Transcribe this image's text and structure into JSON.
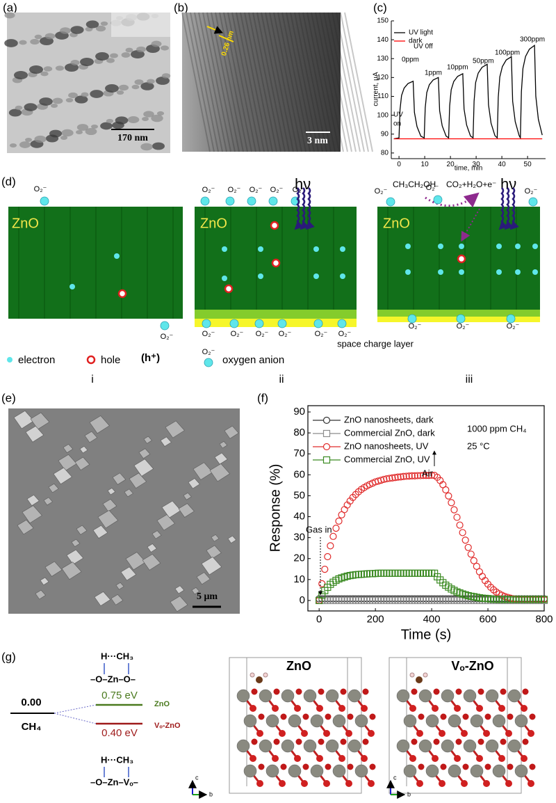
{
  "panel_labels": [
    "(a)",
    "(b)",
    "(c)",
    "(d)",
    "(e)",
    "(f)",
    "(g)"
  ],
  "panel_a": {
    "scale_bar": "170 nm"
  },
  "panel_b": {
    "scale_bar": "3 nm",
    "lattice_spacing": "0.26 nm"
  },
  "chart_data": [
    {
      "type": "line",
      "xlabel": "time, min",
      "ylabel": "current, μA",
      "frame": false,
      "xlim": [
        -3,
        57
      ],
      "ylim": [
        77,
        150
      ],
      "xticks": [
        0,
        10,
        20,
        30,
        40,
        50
      ],
      "yticks": [
        80,
        90,
        100,
        110,
        120,
        130,
        140,
        150
      ],
      "legend": "upper left",
      "series": [
        {
          "name": "UV light",
          "color": "#000000",
          "x": [
            -2,
            0,
            0.4,
            1,
            2,
            3.5,
            5.5,
            6,
            7,
            8.5,
            9.8,
            10.2,
            10.8,
            11.8,
            13.3,
            15.3,
            15.8,
            16.8,
            18.3,
            19.3,
            19.7,
            20.3,
            21.3,
            22.8,
            24.8,
            25.3,
            26.3,
            27.8,
            28.8,
            29.2,
            29.8,
            30.8,
            32.3,
            34.3,
            34.8,
            35.8,
            37.3,
            38.2,
            38.6,
            39.2,
            40.2,
            41.7,
            43.7,
            44.2,
            45.2,
            46.7,
            47.2,
            47.6,
            48.2,
            49.2,
            50.7,
            52.7,
            53.2,
            54.2,
            55.7
          ],
          "values": [
            87.5,
            88,
            103,
            110.5,
            114.4,
            116.8,
            118,
            101.5,
            94,
            88.9,
            88,
            104,
            112,
            116.2,
            118.7,
            120,
            102.4,
            94.4,
            89,
            88,
            105,
            113.5,
            117.9,
            120.6,
            122,
            103.3,
            94.8,
            89,
            88,
            107.5,
            117.3,
            122.3,
            125.4,
            127,
            105.6,
            95.8,
            89.2,
            88,
            109.5,
            120.3,
            125.8,
            129.3,
            131,
            107.4,
            96.6,
            89.3,
            88,
            112.5,
            124.8,
            131.1,
            135,
            137,
            110.1,
            97.8,
            89.5
          ]
        },
        {
          "name": "dark",
          "color": "#ff0000",
          "x": [
            -2,
            55.7
          ],
          "values": [
            87.5,
            87.5
          ]
        }
      ],
      "annotations": [
        "UV 0ff",
        "0ppm",
        "1ppm",
        "10ppm",
        "50ppm",
        "100ppm",
        "300ppm",
        "UV",
        "on"
      ]
    },
    {
      "type": "scatter",
      "xlabel": "Time (s)",
      "ylabel": "Response (%)",
      "frame": true,
      "xlim": [
        -40,
        800
      ],
      "ylim": [
        -5,
        93
      ],
      "xticks": [
        0,
        200,
        400,
        600,
        800
      ],
      "yticks": [
        0,
        10,
        20,
        30,
        40,
        50,
        60,
        70,
        80,
        90
      ],
      "legend": "upper left",
      "x": [
        0,
        10,
        20,
        30,
        40,
        50,
        60,
        70,
        80,
        90,
        100,
        110,
        120,
        130,
        140,
        150,
        160,
        170,
        180,
        190,
        200,
        210,
        220,
        230,
        240,
        250,
        260,
        270,
        280,
        290,
        300,
        310,
        320,
        330,
        340,
        350,
        360,
        370,
        380,
        390,
        400,
        410,
        420,
        430,
        440,
        450,
        460,
        470,
        480,
        490,
        500,
        510,
        520,
        530,
        540,
        550,
        560,
        570,
        580,
        590,
        600,
        610,
        620,
        630,
        640,
        650,
        660,
        670,
        680,
        690,
        700,
        710,
        720,
        730,
        740,
        750,
        760,
        770,
        780,
        790,
        800
      ],
      "series": [
        {
          "name": "ZnO nanosheets, dark",
          "color": "#333333",
          "marker": "circle",
          "values": [
            0.8,
            0.8,
            0.8,
            0.8,
            0.8,
            0.8,
            0.8,
            0.8,
            0.8,
            0.8,
            0.8,
            0.8,
            0.8,
            0.8,
            0.8,
            0.8,
            0.8,
            0.8,
            0.8,
            0.8,
            0.8,
            0.8,
            0.8,
            0.8,
            0.8,
            0.8,
            0.8,
            0.8,
            0.8,
            0.8,
            0.8,
            0.8,
            0.8,
            0.8,
            0.8,
            0.8,
            0.8,
            0.8,
            0.8,
            0.8,
            0.8,
            0.8,
            0.8,
            0.8,
            0.8,
            0.8,
            0.8,
            0.8,
            0.8,
            0.8,
            0.8,
            0.8,
            0.8,
            0.8,
            0.8,
            0.8,
            0.8,
            0.8,
            0.8,
            0.8,
            0.8,
            0.8,
            0.8,
            0.8,
            0.8,
            0.8,
            0.8,
            0.8,
            0.8,
            0.8,
            0.8,
            0.8,
            0.8,
            0.8,
            0.8,
            0.8,
            0.8,
            0.8,
            0.8,
            0.8,
            0.8
          ]
        },
        {
          "name": "Commercial ZnO, dark",
          "color": "#8c8c8c",
          "marker": "square",
          "values": [
            0,
            0,
            0,
            0,
            0,
            0,
            0,
            0,
            0,
            0,
            0,
            0,
            0,
            0,
            0,
            0,
            0,
            0,
            0,
            0,
            0,
            0,
            0,
            0,
            0,
            0,
            0,
            0,
            0,
            0,
            0,
            0,
            0,
            0,
            0,
            0,
            0,
            0,
            0,
            0,
            0,
            0,
            0,
            0,
            0,
            0,
            0,
            0,
            0,
            0,
            0,
            0,
            0,
            0,
            0,
            0,
            0,
            0,
            0,
            0,
            0,
            0,
            0,
            0,
            0,
            0,
            0,
            0,
            0,
            0,
            0,
            0,
            0,
            0,
            0,
            0,
            0,
            0,
            0,
            0,
            0
          ]
        },
        {
          "name": "ZnO nanosheets, UV",
          "color": "#e02a2a",
          "marker": "circle",
          "values": [
            0,
            8.0,
            14.9,
            20.9,
            26.1,
            30.6,
            34.5,
            37.9,
            40.9,
            43.4,
            45.6,
            47.5,
            49.2,
            50.6,
            51.9,
            53.0,
            53.9,
            54.7,
            55.4,
            56.0,
            56.6,
            57.0,
            57.4,
            57.8,
            58.1,
            58.3,
            58.5,
            58.7,
            58.9,
            59.0,
            59.2,
            59.3,
            59.4,
            59.5,
            59.5,
            59.6,
            59.6,
            59.7,
            59.7,
            59.7,
            59.8,
            59.7,
            58.8,
            57.3,
            55.3,
            52.8,
            49.9,
            46.7,
            43.3,
            39.7,
            36.0,
            32.4,
            28.8,
            25.3,
            22.1,
            19.0,
            16.3,
            13.7,
            11.5,
            9.5,
            7.8,
            6.3,
            5.1,
            4.0,
            3.2,
            2.5,
            1.9,
            1.5,
            1.1,
            0.8,
            0.6,
            0.5,
            0.5,
            0.5,
            0.5,
            0.5,
            0.5,
            0.5,
            0.5,
            0.5,
            0.5
          ]
        },
        {
          "name": "Commercial ZnO, UV",
          "color": "#3b8a22",
          "marker": "square",
          "values": [
            0,
            2.6,
            4.7,
            6.3,
            7.7,
            8.7,
            9.6,
            10.3,
            10.8,
            11.2,
            11.6,
            11.9,
            12.1,
            12.3,
            12.4,
            12.5,
            12.6,
            12.7,
            12.8,
            12.8,
            12.9,
            13.0,
            13.0,
            13.0,
            13.0,
            13.0,
            13.0,
            13.0,
            13.0,
            13.0,
            13.0,
            13.0,
            13.0,
            13.0,
            13.0,
            13.0,
            13.0,
            13.0,
            13.0,
            13.0,
            13.0,
            13.0,
            11.3,
            9.8,
            8.5,
            7.3,
            6.4,
            5.5,
            4.8,
            4.1,
            3.6,
            3.1,
            2.7,
            2.3,
            2.0,
            1.8,
            1.5,
            1.3,
            1.1,
            1.0,
            0.9,
            0.7,
            0.6,
            0.6,
            0.5,
            0.5,
            0.5,
            0.5,
            0.5,
            0.5,
            0.5,
            0.5,
            0.5,
            0.5,
            0.5,
            0.5,
            0.5,
            0.5,
            0.5,
            0.5,
            0.5
          ]
        }
      ],
      "annotations": [
        "1000 ppm CH₄",
        "25 °C",
        "Gas in",
        "Air"
      ]
    }
  ],
  "panel_d": {
    "material": [
      "ZnO",
      "ZnO",
      "ZnO"
    ],
    "photon": [
      "hν",
      "hν"
    ],
    "molecules": [
      "CH₃CH₂OH",
      "CO₂+H₂O+e⁻"
    ],
    "oxygen_anion_labels": [
      "O₂⁻",
      "O₂⁻",
      "O₂⁻",
      "O₂⁻",
      "O₂⁻",
      "O₂⁻",
      "O₂⁻",
      "O₂⁻",
      "O₂⁻",
      "O₂⁻",
      "O₂⁻",
      "O₂⁻",
      "O₂⁻",
      "O₂⁻",
      "O₂⁻",
      "O₂⁻",
      "O₂⁻",
      "O₂⁻",
      "O₂⁻",
      "O₂⁻"
    ],
    "space_charge": "space charge layer",
    "legend": {
      "electron": "electron",
      "hole": "hole",
      "hole_symbol": "(h⁺)",
      "oxygen_anion": "oxygen anion"
    },
    "stages": [
      "i",
      "ii",
      "iii"
    ]
  },
  "panel_e": {
    "scale_bar": "5 μm"
  },
  "panel_g": {
    "reference_value": "0.00",
    "reference": "CH₄",
    "levels": [
      {
        "energy": "0.75 eV",
        "label": "ZnO"
      },
      {
        "energy": "0.40 eV",
        "label": "Vₒ-ZnO"
      }
    ],
    "adsorption_top": [
      "H···CH₃",
      "–O–Zn–O–"
    ],
    "adsorption_bottom": [
      "H···CH₃",
      "–O–Zn–Vₒ–"
    ],
    "structures": [
      "ZnO",
      "Vₒ-ZnO"
    ],
    "axes": [
      "c",
      "b",
      "c",
      "b"
    ]
  }
}
